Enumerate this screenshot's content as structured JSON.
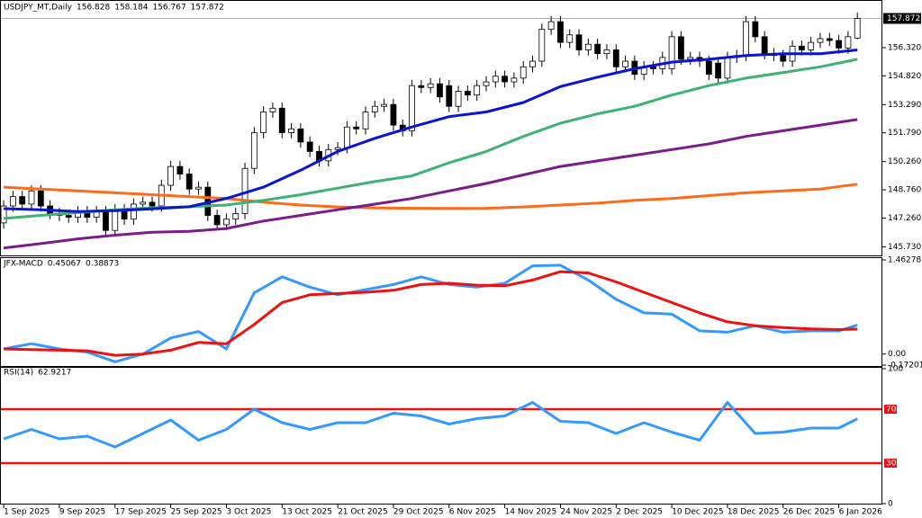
{
  "chart_data": [
    {
      "type": "candlestick",
      "symbol": "USDJPY_MT,Daily",
      "xlim": [
        -0.3,
        94.6
      ],
      "xticks": [
        {
          "value": 0,
          "label": "1 Sep 2025"
        },
        {
          "value": 6,
          "label": "9 Sep 2025"
        },
        {
          "value": 12,
          "label": "17 Sep 2025"
        },
        {
          "value": 18,
          "label": "25 Sep 2025"
        },
        {
          "value": 24,
          "label": "3 Oct 2025"
        },
        {
          "value": 30,
          "label": "13 Oct 2025"
        },
        {
          "value": 36,
          "label": "21 Oct 2025"
        },
        {
          "value": 42,
          "label": "29 Oct 2025"
        },
        {
          "value": 48,
          "label": "6 Nov 2025"
        },
        {
          "value": 54,
          "label": "14 Nov 2025"
        },
        {
          "value": 60,
          "label": "24 Nov 2025"
        },
        {
          "value": 66,
          "label": "2 Dec 2025"
        },
        {
          "value": 72,
          "label": "10 Dec 2025"
        },
        {
          "value": 78,
          "label": "18 Dec 2025"
        },
        {
          "value": 84,
          "label": "26 Dec 2025"
        },
        {
          "value": 90,
          "label": "6 Jan 2026"
        }
      ],
      "ylim": [
        145.32,
        158.71
      ],
      "yticks": [
        {
          "value": 156.32,
          "label": "156.320"
        },
        {
          "value": 154.82,
          "label": "154.820"
        },
        {
          "value": 153.29,
          "label": "153.290"
        },
        {
          "value": 151.79,
          "label": "151.790"
        },
        {
          "value": 150.26,
          "label": "150.260"
        },
        {
          "value": 148.76,
          "label": "148.760"
        },
        {
          "value": 147.26,
          "label": "147.260"
        },
        {
          "value": 145.73,
          "label": "145.730"
        }
      ],
      "up_color": "#ffffff",
      "down_color": "#000000",
      "open": [
        147.0,
        147.9,
        148.4,
        148.0,
        148.7,
        147.9,
        147.5,
        147.4,
        147.3,
        147.6,
        147.3,
        147.6,
        146.6,
        147.7,
        147.2,
        148.0,
        148.1,
        147.9,
        149.0,
        150.0,
        149.6,
        148.8,
        148.9,
        147.4,
        146.9,
        147.2,
        147.5,
        149.9,
        151.8,
        152.9,
        153.1,
        151.8,
        152.0,
        151.3,
        150.8,
        150.3,
        150.9,
        151.0,
        152.1,
        152.0,
        152.9,
        153.2,
        153.3,
        152.2,
        151.9,
        154.3,
        154.2,
        154.4,
        154.3,
        153.2,
        154.0,
        153.8,
        154.3,
        154.5,
        154.8,
        154.5,
        154.7,
        155.3,
        155.6,
        157.3,
        157.7,
        156.6,
        157.0,
        156.2,
        156.5,
        156.0,
        156.2,
        155.3,
        155.6,
        154.9,
        155.3,
        155.2,
        155.2,
        156.9,
        155.7,
        155.8,
        155.6,
        155.5,
        154.7,
        155.8,
        155.9,
        157.7,
        156.9,
        156.0,
        155.9,
        155.6,
        156.4,
        156.2,
        156.6,
        156.8,
        156.7,
        156.3,
        156.828
      ],
      "high": [
        148.2,
        148.7,
        148.7,
        149.0,
        149.0,
        148.2,
        147.8,
        147.7,
        147.9,
        147.9,
        147.9,
        147.9,
        148.0,
        148.0,
        148.3,
        148.4,
        148.4,
        149.3,
        150.3,
        150.3,
        149.9,
        149.2,
        149.2,
        147.7,
        147.5,
        147.8,
        150.2,
        152.1,
        153.2,
        153.4,
        153.4,
        152.3,
        152.3,
        151.6,
        151.1,
        151.2,
        151.3,
        152.4,
        152.4,
        153.2,
        153.5,
        153.6,
        153.6,
        152.5,
        154.6,
        154.6,
        154.7,
        154.7,
        154.6,
        154.3,
        154.3,
        154.6,
        154.8,
        155.1,
        155.1,
        155.0,
        155.6,
        155.9,
        157.6,
        158.0,
        158.0,
        157.3,
        157.3,
        156.8,
        156.8,
        156.5,
        156.5,
        155.9,
        155.9,
        155.6,
        155.6,
        156.1,
        157.2,
        157.2,
        156.1,
        156.1,
        155.9,
        155.8,
        156.1,
        156.2,
        158.0,
        158.0,
        157.2,
        156.3,
        156.2,
        156.7,
        156.7,
        156.9,
        157.1,
        157.1,
        157.0,
        157.2,
        158.184
      ],
      "low": [
        146.7,
        147.6,
        147.7,
        147.7,
        147.6,
        147.2,
        147.1,
        147.0,
        147.0,
        147.0,
        147.0,
        146.3,
        146.3,
        146.9,
        146.9,
        147.7,
        147.6,
        147.6,
        148.7,
        149.3,
        148.5,
        148.5,
        147.1,
        146.6,
        146.6,
        146.9,
        147.2,
        149.6,
        151.5,
        152.6,
        151.5,
        151.5,
        151.0,
        150.5,
        150.0,
        150.0,
        150.6,
        150.7,
        151.7,
        151.7,
        152.6,
        152.9,
        151.9,
        151.6,
        151.6,
        153.9,
        153.9,
        153.4,
        152.9,
        152.9,
        153.5,
        153.5,
        154.0,
        154.2,
        154.2,
        154.2,
        154.4,
        155.0,
        155.3,
        157.0,
        156.3,
        156.3,
        155.9,
        155.9,
        155.7,
        155.7,
        155.0,
        155.0,
        154.6,
        154.6,
        154.9,
        154.9,
        154.9,
        155.4,
        155.4,
        155.3,
        154.6,
        154.4,
        154.4,
        155.5,
        155.6,
        156.6,
        155.7,
        155.6,
        155.3,
        155.3,
        155.9,
        155.9,
        156.3,
        156.4,
        156.0,
        156.0,
        156.767
      ],
      "close": [
        147.9,
        148.4,
        148.0,
        148.7,
        147.9,
        147.5,
        147.4,
        147.3,
        147.6,
        147.3,
        147.6,
        146.6,
        147.7,
        147.2,
        148.0,
        148.1,
        147.9,
        149.0,
        150.0,
        149.6,
        148.8,
        148.9,
        147.4,
        146.9,
        147.2,
        147.5,
        149.9,
        151.8,
        152.9,
        153.1,
        151.8,
        152.0,
        151.3,
        150.8,
        150.3,
        150.9,
        151.0,
        152.1,
        152.0,
        152.9,
        153.2,
        153.3,
        152.2,
        151.9,
        154.3,
        154.2,
        154.4,
        153.7,
        153.2,
        154.0,
        153.8,
        154.3,
        154.5,
        154.8,
        154.5,
        154.7,
        155.3,
        155.6,
        157.3,
        157.7,
        156.6,
        157.0,
        156.2,
        156.5,
        156.0,
        156.2,
        155.3,
        155.6,
        154.9,
        155.3,
        155.2,
        155.8,
        156.9,
        155.7,
        155.8,
        155.6,
        154.9,
        154.7,
        155.8,
        155.9,
        157.7,
        156.9,
        156.0,
        155.9,
        155.6,
        156.4,
        156.2,
        156.6,
        156.8,
        156.7,
        156.3,
        156.9,
        157.872
      ],
      "series": [
        {
          "color": "#ff6a1a",
          "x": [
            0,
            4,
            8,
            12,
            16,
            20,
            24,
            28,
            32,
            36,
            40,
            44,
            48,
            52,
            56,
            60,
            64,
            68,
            72,
            76,
            80,
            84,
            88,
            92
          ],
          "values": [
            148.9,
            148.8,
            148.7,
            148.6,
            148.5,
            148.4,
            148.3,
            148.1,
            147.95,
            147.85,
            147.8,
            147.78,
            147.77,
            147.78,
            147.85,
            147.95,
            148.05,
            148.2,
            148.3,
            148.45,
            148.6,
            148.7,
            148.8,
            149.06
          ]
        },
        {
          "color": "#7b1c8a",
          "x": [
            0,
            4,
            8,
            12,
            16,
            20,
            24,
            28,
            32,
            36,
            40,
            44,
            48,
            52,
            56,
            60,
            64,
            68,
            72,
            76,
            80,
            84,
            88,
            92
          ],
          "values": [
            145.67,
            145.9,
            146.15,
            146.35,
            146.5,
            146.55,
            146.7,
            147.1,
            147.4,
            147.7,
            148.0,
            148.3,
            148.7,
            149.1,
            149.55,
            150.0,
            150.3,
            150.6,
            150.9,
            151.2,
            151.6,
            151.9,
            152.2,
            152.5
          ]
        },
        {
          "color": "#3cb371",
          "x": [
            0,
            4,
            8,
            12,
            16,
            20,
            24,
            28,
            32,
            36,
            40,
            44,
            48,
            52,
            56,
            60,
            64,
            68,
            72,
            76,
            80,
            84,
            88,
            92
          ],
          "values": [
            147.24,
            147.4,
            147.55,
            147.7,
            147.8,
            147.86,
            147.95,
            148.2,
            148.5,
            148.85,
            149.2,
            149.5,
            150.2,
            150.8,
            151.6,
            152.3,
            152.8,
            153.2,
            153.8,
            154.3,
            154.7,
            155.0,
            155.3,
            155.7
          ]
        },
        {
          "color": "#0a14d6",
          "x": [
            0,
            4,
            8,
            12,
            16,
            20,
            24,
            28,
            32,
            36,
            40,
            44,
            48,
            52,
            56,
            60,
            64,
            68,
            72,
            76,
            80,
            84,
            88,
            92
          ],
          "values": [
            147.76,
            147.7,
            147.6,
            147.65,
            147.75,
            147.86,
            148.3,
            148.9,
            149.8,
            150.8,
            151.5,
            152.1,
            152.65,
            152.9,
            153.4,
            154.25,
            154.75,
            155.2,
            155.55,
            155.7,
            155.9,
            156.0,
            156.0,
            156.2
          ]
        }
      ]
    },
    {
      "type": "line",
      "title": "JFX-MACD",
      "ylim": [
        -0.17201,
        1.46278
      ],
      "yticks": [
        1.46278,
        {
          "value": 0,
          "label": "0.00"
        },
        -0.17201
      ],
      "series": [
        {
          "color": "#3399ff",
          "x": [
            0,
            3,
            6,
            9,
            12,
            15,
            18,
            21,
            24,
            27,
            30,
            33,
            36,
            39,
            42,
            45,
            48,
            51,
            54,
            57,
            60,
            63,
            66,
            69,
            72,
            75,
            78,
            81,
            84,
            87,
            90,
            92
          ],
          "values": [
            0.08,
            0.16,
            0.08,
            0.03,
            -0.12,
            0.0,
            0.25,
            0.35,
            0.08,
            0.95,
            1.2,
            1.04,
            0.92,
            1.0,
            1.08,
            1.2,
            1.08,
            1.04,
            1.1,
            1.37,
            1.38,
            1.15,
            0.85,
            0.64,
            0.62,
            0.36,
            0.34,
            0.44,
            0.34,
            0.36,
            0.36,
            0.45067
          ]
        },
        {
          "color": "#ee1111",
          "x": [
            0,
            3,
            6,
            9,
            12,
            15,
            18,
            21,
            24,
            27,
            30,
            33,
            36,
            39,
            42,
            45,
            48,
            51,
            54,
            57,
            60,
            63,
            66,
            69,
            72,
            75,
            78,
            81,
            84,
            87,
            90,
            92
          ],
          "values": [
            0.08,
            0.07,
            0.06,
            0.05,
            -0.02,
            0.0,
            0.06,
            0.18,
            0.16,
            0.46,
            0.8,
            0.92,
            0.94,
            0.96,
            0.99,
            1.08,
            1.1,
            1.07,
            1.06,
            1.15,
            1.28,
            1.26,
            1.12,
            0.96,
            0.8,
            0.64,
            0.5,
            0.44,
            0.41,
            0.39,
            0.38,
            0.38873
          ]
        }
      ]
    },
    {
      "type": "line",
      "title": "RSI(14)",
      "ylim": [
        0,
        100
      ],
      "yticks": [
        100,
        0
      ],
      "levels": [
        70,
        30
      ],
      "level_color": "#ee1111",
      "series": [
        {
          "color": "#3399ff",
          "x": [
            0,
            3,
            6,
            9,
            12,
            15,
            18,
            21,
            24,
            27,
            30,
            33,
            36,
            39,
            42,
            45,
            48,
            51,
            54,
            57,
            60,
            63,
            66,
            69,
            72,
            75,
            78,
            81,
            84,
            87,
            90,
            92
          ],
          "values": [
            48,
            55,
            48,
            50,
            42,
            52,
            62,
            47,
            55,
            70,
            60,
            55,
            60,
            60,
            67,
            65,
            59,
            63,
            65,
            75,
            61,
            60,
            52,
            60,
            53,
            47,
            75,
            52,
            53,
            56,
            56,
            62.9217
          ]
        }
      ]
    }
  ]
}
